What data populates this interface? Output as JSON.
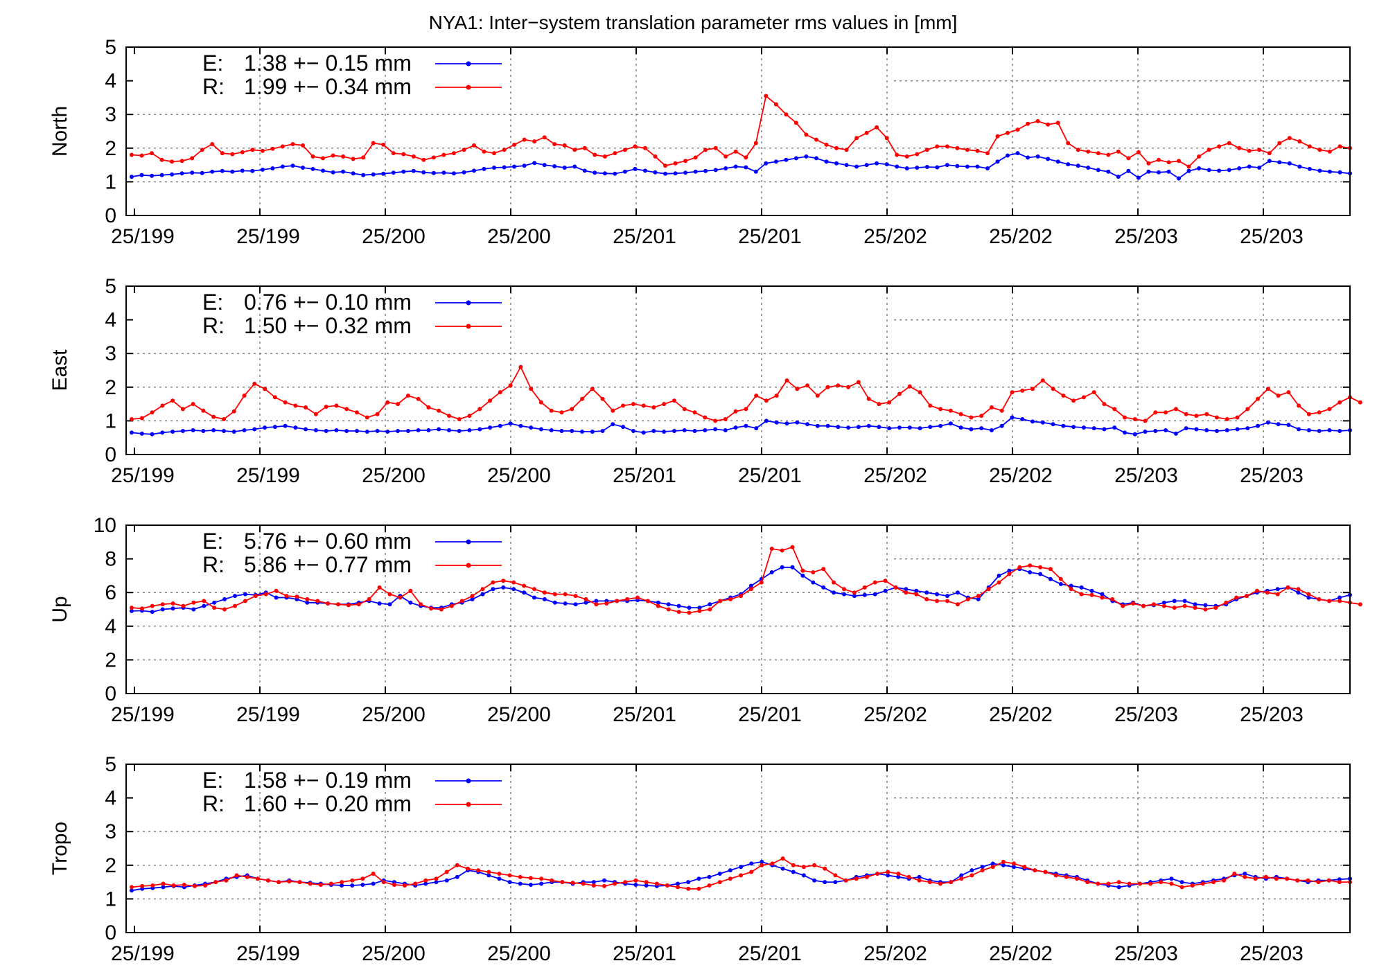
{
  "title": "NYA1: Inter−system translation parameter rms values in [mm]",
  "colors": {
    "E": "#0000ff",
    "R": "#ff0000",
    "grid": "#808080",
    "frame": "#000000"
  },
  "x_tick_labels": [
    "25/199",
    "25/199",
    "25/200",
    "25/200",
    "25/201",
    "25/201",
    "25/202",
    "25/202",
    "25/203",
    "25/203"
  ],
  "chart_data": [
    {
      "type": "line",
      "ylabel": "North",
      "ylim": [
        0,
        5
      ],
      "yticks": [
        "0",
        "1",
        "2",
        "3",
        "4",
        "5"
      ],
      "legend": {
        "placement": "top-left",
        "entries": [
          {
            "key": "E:",
            "text": "1.38 +− 0.15 mm"
          },
          {
            "key": "R:",
            "text": "1.99 +− 0.34 mm"
          }
        ]
      },
      "series": [
        {
          "color_key": "E",
          "values": [
            1.15,
            1.2,
            1.18,
            1.2,
            1.22,
            1.25,
            1.27,
            1.26,
            1.3,
            1.32,
            1.3,
            1.33,
            1.32,
            1.36,
            1.4,
            1.45,
            1.48,
            1.42,
            1.38,
            1.33,
            1.28,
            1.3,
            1.25,
            1.2,
            1.22,
            1.24,
            1.27,
            1.3,
            1.32,
            1.28,
            1.26,
            1.27,
            1.25,
            1.28,
            1.33,
            1.38,
            1.42,
            1.43,
            1.45,
            1.48,
            1.56,
            1.5,
            1.46,
            1.42,
            1.45,
            1.33,
            1.27,
            1.25,
            1.24,
            1.3,
            1.38,
            1.33,
            1.28,
            1.24,
            1.25,
            1.27,
            1.3,
            1.32,
            1.35,
            1.4,
            1.45,
            1.43,
            1.3,
            1.55,
            1.6,
            1.65,
            1.7,
            1.75,
            1.7,
            1.6,
            1.55,
            1.5,
            1.45,
            1.5,
            1.55,
            1.52,
            1.45,
            1.4,
            1.42,
            1.44,
            1.43,
            1.5,
            1.47,
            1.45,
            1.45,
            1.4,
            1.6,
            1.78,
            1.85,
            1.72,
            1.75,
            1.68,
            1.6,
            1.52,
            1.48,
            1.42,
            1.35,
            1.3,
            1.15,
            1.32,
            1.12,
            1.3,
            1.28,
            1.3,
            1.1,
            1.32,
            1.4,
            1.35,
            1.33,
            1.35,
            1.4,
            1.45,
            1.42,
            1.62,
            1.58,
            1.55,
            1.45,
            1.38,
            1.33,
            1.3,
            1.28,
            1.25
          ]
        },
        {
          "color_key": "R",
          "values": [
            1.8,
            1.78,
            1.85,
            1.65,
            1.6,
            1.62,
            1.7,
            1.95,
            2.12,
            1.85,
            1.82,
            1.88,
            1.95,
            1.92,
            1.98,
            2.05,
            2.12,
            2.08,
            1.75,
            1.7,
            1.78,
            1.75,
            1.68,
            1.72,
            2.15,
            2.1,
            1.85,
            1.82,
            1.75,
            1.65,
            1.72,
            1.8,
            1.85,
            1.95,
            2.08,
            1.9,
            1.85,
            1.95,
            2.1,
            2.25,
            2.2,
            2.32,
            2.12,
            2.08,
            1.95,
            2.0,
            1.8,
            1.75,
            1.85,
            1.95,
            2.05,
            2.0,
            1.75,
            1.48,
            1.55,
            1.62,
            1.72,
            1.95,
            2.0,
            1.75,
            1.9,
            1.72,
            2.15,
            3.55,
            3.3,
            3.0,
            2.75,
            2.4,
            2.25,
            2.1,
            2.0,
            1.95,
            2.3,
            2.45,
            2.62,
            2.3,
            1.8,
            1.75,
            1.82,
            1.95,
            2.05,
            2.05,
            2.0,
            1.95,
            1.92,
            1.85,
            2.35,
            2.45,
            2.55,
            2.72,
            2.8,
            2.7,
            2.75,
            2.15,
            1.95,
            1.9,
            1.85,
            1.8,
            1.9,
            1.7,
            1.88,
            1.55,
            1.65,
            1.58,
            1.62,
            1.45,
            1.75,
            1.95,
            2.05,
            2.15,
            2.0,
            1.92,
            1.95,
            1.85,
            2.15,
            2.3,
            2.2,
            2.05,
            1.95,
            1.9,
            2.05,
            2.0
          ]
        }
      ]
    },
    {
      "type": "line",
      "ylabel": "East",
      "ylim": [
        0,
        5
      ],
      "yticks": [
        "0",
        "1",
        "2",
        "3",
        "4",
        "5"
      ],
      "legend": {
        "placement": "top-left",
        "entries": [
          {
            "key": "E:",
            "text": "0.76 +− 0.10 mm"
          },
          {
            "key": "R:",
            "text": "1.50 +− 0.32 mm"
          }
        ]
      },
      "series": [
        {
          "color_key": "E",
          "values": [
            0.65,
            0.62,
            0.6,
            0.65,
            0.68,
            0.7,
            0.72,
            0.7,
            0.72,
            0.7,
            0.68,
            0.72,
            0.75,
            0.8,
            0.82,
            0.85,
            0.8,
            0.75,
            0.72,
            0.7,
            0.72,
            0.7,
            0.7,
            0.68,
            0.7,
            0.68,
            0.7,
            0.7,
            0.72,
            0.72,
            0.75,
            0.72,
            0.7,
            0.72,
            0.75,
            0.8,
            0.85,
            0.92,
            0.85,
            0.8,
            0.75,
            0.72,
            0.7,
            0.7,
            0.68,
            0.68,
            0.7,
            0.9,
            0.82,
            0.7,
            0.65,
            0.7,
            0.68,
            0.7,
            0.72,
            0.7,
            0.72,
            0.75,
            0.72,
            0.8,
            0.85,
            0.78,
            1.0,
            0.95,
            0.92,
            0.95,
            0.9,
            0.85,
            0.85,
            0.82,
            0.8,
            0.82,
            0.85,
            0.82,
            0.78,
            0.8,
            0.8,
            0.78,
            0.82,
            0.85,
            0.92,
            0.8,
            0.75,
            0.78,
            0.72,
            0.85,
            1.1,
            1.05,
            0.98,
            0.95,
            0.9,
            0.85,
            0.82,
            0.8,
            0.78,
            0.75,
            0.8,
            0.65,
            0.6,
            0.68,
            0.7,
            0.72,
            0.62,
            0.78,
            0.75,
            0.72,
            0.7,
            0.72,
            0.75,
            0.78,
            0.85,
            0.95,
            0.9,
            0.88,
            0.75,
            0.72,
            0.7,
            0.72,
            0.7,
            0.72
          ]
        },
        {
          "color_key": "R",
          "values": [
            1.05,
            1.08,
            1.25,
            1.45,
            1.6,
            1.35,
            1.5,
            1.3,
            1.12,
            1.05,
            1.28,
            1.75,
            2.1,
            1.95,
            1.7,
            1.55,
            1.45,
            1.4,
            1.2,
            1.42,
            1.45,
            1.35,
            1.25,
            1.1,
            1.2,
            1.55,
            1.5,
            1.75,
            1.65,
            1.4,
            1.3,
            1.15,
            1.05,
            1.15,
            1.35,
            1.6,
            1.85,
            2.05,
            2.6,
            1.95,
            1.55,
            1.3,
            1.25,
            1.35,
            1.65,
            1.95,
            1.65,
            1.3,
            1.45,
            1.5,
            1.45,
            1.4,
            1.5,
            1.6,
            1.35,
            1.25,
            1.1,
            1.0,
            1.05,
            1.28,
            1.35,
            1.75,
            1.6,
            1.75,
            2.2,
            1.95,
            2.05,
            1.75,
            2.0,
            2.05,
            2.0,
            2.15,
            1.65,
            1.5,
            1.55,
            1.8,
            2.02,
            1.85,
            1.45,
            1.35,
            1.3,
            1.2,
            1.1,
            1.15,
            1.4,
            1.3,
            1.85,
            1.9,
            1.95,
            2.2,
            1.95,
            1.75,
            1.6,
            1.7,
            1.85,
            1.5,
            1.35,
            1.1,
            1.05,
            1.0,
            1.25,
            1.25,
            1.35,
            1.2,
            1.15,
            1.2,
            1.1,
            1.05,
            1.1,
            1.35,
            1.65,
            1.95,
            1.75,
            1.85,
            1.45,
            1.2,
            1.25,
            1.35,
            1.55,
            1.7,
            1.55
          ]
        }
      ]
    },
    {
      "type": "line",
      "ylabel": "Up",
      "ylim": [
        0,
        10
      ],
      "yticks": [
        "0",
        "2",
        "4",
        "6",
        "8",
        "10"
      ],
      "legend": {
        "placement": "top-left",
        "entries": [
          {
            "key": "E:",
            "text": "5.76 +− 0.60 mm"
          },
          {
            "key": "R:",
            "text": "5.86 +− 0.77 mm"
          }
        ]
      },
      "series": [
        {
          "color_key": "E",
          "values": [
            4.9,
            4.92,
            4.85,
            5.0,
            5.05,
            5.1,
            5.0,
            5.2,
            5.4,
            5.6,
            5.8,
            5.9,
            5.85,
            6.0,
            5.7,
            5.7,
            5.6,
            5.4,
            5.4,
            5.35,
            5.3,
            5.3,
            5.4,
            5.5,
            5.35,
            5.3,
            5.8,
            5.4,
            5.2,
            5.1,
            5.1,
            5.3,
            5.4,
            5.6,
            5.9,
            6.2,
            6.3,
            6.2,
            6.0,
            5.7,
            5.6,
            5.4,
            5.35,
            5.3,
            5.4,
            5.5,
            5.5,
            5.5,
            5.5,
            5.55,
            5.5,
            5.4,
            5.3,
            5.2,
            5.1,
            5.1,
            5.3,
            5.5,
            5.7,
            5.9,
            6.4,
            6.8,
            7.2,
            7.5,
            7.5,
            7.0,
            6.6,
            6.3,
            6.0,
            5.9,
            5.8,
            5.85,
            5.9,
            6.1,
            6.3,
            6.2,
            6.1,
            6.0,
            5.9,
            5.8,
            6.0,
            5.7,
            5.6,
            6.3,
            7.0,
            7.3,
            7.4,
            7.2,
            7.1,
            6.8,
            6.5,
            6.4,
            6.3,
            6.1,
            5.9,
            5.5,
            5.3,
            5.4,
            5.2,
            5.25,
            5.4,
            5.5,
            5.5,
            5.3,
            5.25,
            5.2,
            5.3,
            5.6,
            5.8,
            6.0,
            6.1,
            6.2,
            6.3,
            6.0,
            5.7,
            5.6,
            5.5,
            5.7,
            5.85
          ]
        },
        {
          "color_key": "R",
          "values": [
            5.1,
            5.05,
            5.2,
            5.3,
            5.35,
            5.2,
            5.4,
            5.5,
            5.1,
            5.0,
            5.2,
            5.5,
            5.8,
            5.9,
            6.1,
            5.8,
            5.75,
            5.6,
            5.5,
            5.35,
            5.3,
            5.25,
            5.3,
            5.6,
            6.3,
            5.9,
            5.7,
            6.1,
            5.3,
            5.05,
            5.0,
            5.2,
            5.5,
            5.8,
            6.2,
            6.6,
            6.7,
            6.6,
            6.4,
            6.2,
            6.0,
            5.9,
            5.9,
            5.8,
            5.6,
            5.3,
            5.35,
            5.5,
            5.6,
            5.7,
            5.5,
            5.2,
            5.0,
            4.85,
            4.8,
            4.9,
            5.0,
            5.5,
            5.6,
            5.8,
            6.2,
            6.6,
            8.6,
            8.5,
            8.7,
            7.3,
            7.2,
            7.4,
            6.6,
            6.2,
            6.0,
            6.3,
            6.6,
            6.7,
            6.3,
            6.0,
            5.9,
            5.6,
            5.5,
            5.5,
            5.3,
            5.6,
            5.8,
            6.2,
            6.6,
            7.1,
            7.5,
            7.6,
            7.5,
            7.4,
            6.8,
            6.2,
            5.9,
            5.85,
            5.7,
            5.6,
            5.2,
            5.35,
            5.2,
            5.3,
            5.2,
            5.1,
            5.2,
            5.1,
            5.0,
            5.1,
            5.4,
            5.7,
            5.8,
            6.1,
            6.0,
            5.9,
            6.3,
            6.2,
            5.9,
            5.6,
            5.5,
            5.5,
            5.4,
            5.3
          ]
        }
      ]
    },
    {
      "type": "line",
      "ylabel": "Tropo",
      "ylim": [
        0,
        5
      ],
      "yticks": [
        "0",
        "1",
        "2",
        "3",
        "4",
        "5"
      ],
      "legend": {
        "placement": "top-left",
        "entries": [
          {
            "key": "E:",
            "text": "1.58 +− 0.19 mm"
          },
          {
            "key": "R:",
            "text": "1.60 +− 0.20 mm"
          }
        ]
      },
      "series": [
        {
          "color_key": "E",
          "values": [
            1.25,
            1.3,
            1.32,
            1.35,
            1.38,
            1.35,
            1.4,
            1.45,
            1.5,
            1.6,
            1.65,
            1.7,
            1.6,
            1.55,
            1.5,
            1.55,
            1.5,
            1.48,
            1.45,
            1.42,
            1.4,
            1.4,
            1.42,
            1.45,
            1.55,
            1.5,
            1.45,
            1.4,
            1.45,
            1.5,
            1.55,
            1.65,
            1.85,
            1.8,
            1.7,
            1.6,
            1.5,
            1.45,
            1.42,
            1.45,
            1.5,
            1.5,
            1.45,
            1.5,
            1.5,
            1.55,
            1.5,
            1.45,
            1.42,
            1.4,
            1.38,
            1.4,
            1.45,
            1.5,
            1.6,
            1.65,
            1.75,
            1.85,
            1.95,
            2.05,
            2.1,
            2.0,
            1.9,
            1.8,
            1.7,
            1.55,
            1.5,
            1.5,
            1.55,
            1.65,
            1.7,
            1.75,
            1.7,
            1.65,
            1.6,
            1.65,
            1.55,
            1.5,
            1.5,
            1.7,
            1.85,
            1.95,
            2.05,
            2.0,
            1.95,
            1.9,
            1.85,
            1.8,
            1.75,
            1.7,
            1.65,
            1.55,
            1.45,
            1.4,
            1.35,
            1.4,
            1.45,
            1.5,
            1.55,
            1.6,
            1.5,
            1.45,
            1.5,
            1.55,
            1.6,
            1.7,
            1.75,
            1.65,
            1.6,
            1.65,
            1.6,
            1.55,
            1.5,
            1.55,
            1.55,
            1.58,
            1.6
          ]
        },
        {
          "color_key": "R",
          "values": [
            1.35,
            1.38,
            1.4,
            1.45,
            1.4,
            1.42,
            1.38,
            1.4,
            1.5,
            1.55,
            1.7,
            1.65,
            1.6,
            1.55,
            1.5,
            1.52,
            1.5,
            1.45,
            1.42,
            1.45,
            1.5,
            1.55,
            1.6,
            1.75,
            1.5,
            1.42,
            1.4,
            1.45,
            1.55,
            1.6,
            1.8,
            2.0,
            1.9,
            1.85,
            1.8,
            1.75,
            1.7,
            1.65,
            1.62,
            1.6,
            1.55,
            1.5,
            1.48,
            1.45,
            1.4,
            1.38,
            1.45,
            1.5,
            1.55,
            1.5,
            1.45,
            1.4,
            1.35,
            1.3,
            1.3,
            1.4,
            1.5,
            1.6,
            1.7,
            1.8,
            2.0,
            2.05,
            2.2,
            2.0,
            1.95,
            2.0,
            1.9,
            1.7,
            1.55,
            1.6,
            1.65,
            1.75,
            1.8,
            1.75,
            1.65,
            1.55,
            1.5,
            1.45,
            1.5,
            1.6,
            1.7,
            1.85,
            1.95,
            2.1,
            2.05,
            1.95,
            1.85,
            1.8,
            1.7,
            1.65,
            1.6,
            1.5,
            1.45,
            1.45,
            1.5,
            1.45,
            1.45,
            1.45,
            1.5,
            1.45,
            1.35,
            1.4,
            1.45,
            1.5,
            1.55,
            1.75,
            1.65,
            1.6,
            1.65,
            1.6,
            1.6,
            1.55,
            1.55,
            1.5,
            1.55,
            1.5,
            1.5
          ]
        }
      ]
    }
  ]
}
